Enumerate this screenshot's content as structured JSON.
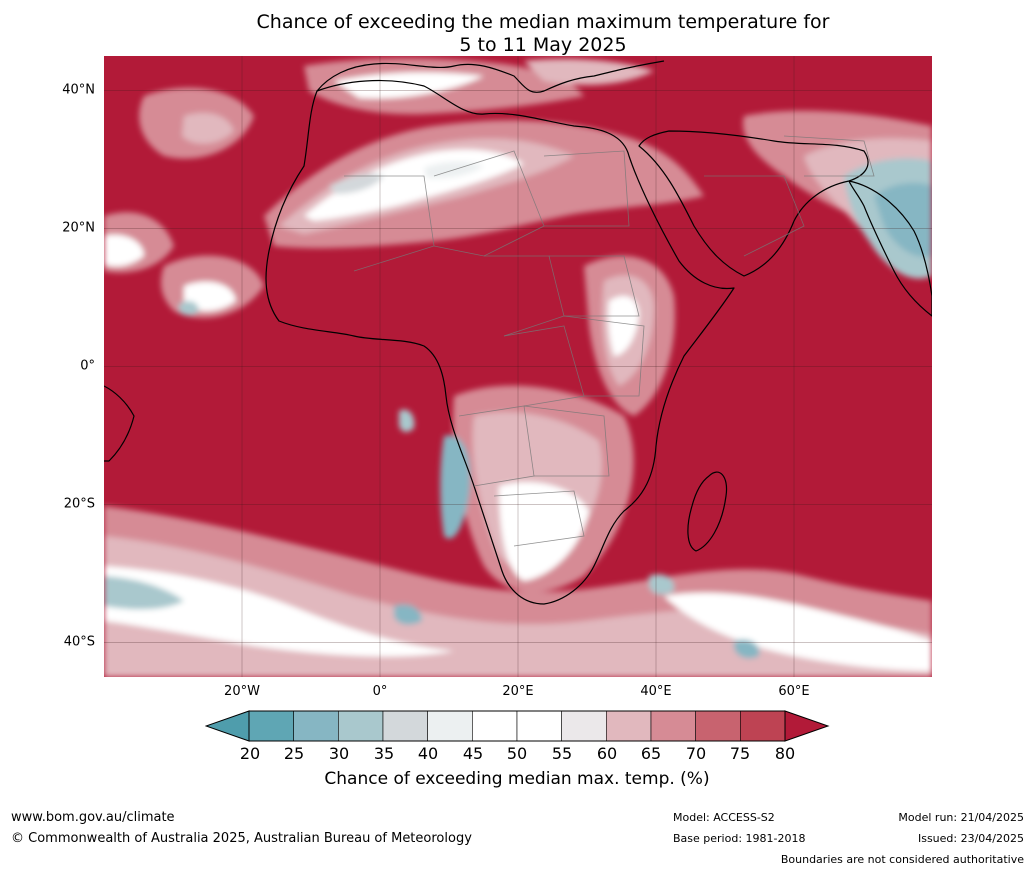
{
  "title": {
    "line1": "Chance of exceeding the median maximum temperature for",
    "line2": "5 to 11 May 2025"
  },
  "map": {
    "lon_range": [
      -40,
      80
    ],
    "lat_range": [
      -45,
      45
    ],
    "lat_ticks": [
      {
        "value": 40,
        "label": "40°N"
      },
      {
        "value": 20,
        "label": "20°N"
      },
      {
        "value": 0,
        "label": "0°"
      },
      {
        "value": -20,
        "label": "20°S"
      },
      {
        "value": -40,
        "label": "40°S"
      }
    ],
    "lon_ticks": [
      {
        "value": -20,
        "label": "20°W"
      },
      {
        "value": 0,
        "label": "0°"
      },
      {
        "value": 20,
        "label": "20°E"
      },
      {
        "value": 40,
        "label": "40°E"
      },
      {
        "value": 60,
        "label": "60°E"
      }
    ],
    "background_color": "#b21a38"
  },
  "colorbar": {
    "ticks": [
      "20",
      "25",
      "30",
      "35",
      "40",
      "45",
      "50",
      "55",
      "60",
      "65",
      "70",
      "75",
      "80"
    ],
    "colors": [
      "#5fa6b4",
      "#86b6c3",
      "#a9c8cd",
      "#d3d8db",
      "#ecf0f1",
      "#ffffff",
      "#ffffff",
      "#ebe8ea",
      "#e1b8be",
      "#d68b95",
      "#c8636f",
      "#be4353"
    ],
    "under_color": "#4f9dac",
    "over_color": "#b21a38",
    "label": "Chance of exceeding median max. temp. (%)"
  },
  "footer": {
    "website": "www.bom.gov.au/climate",
    "copyright": "© Commonwealth of Australia 2025, Australian Bureau of Meteorology",
    "model": "Model: ACCESS-S2",
    "base_period": "Base period: 1981-2018",
    "model_run": "Model run: 21/04/2025",
    "issued": "Issued: 23/04/2025",
    "disclaimer": "Boundaries are not considered authoritative"
  }
}
